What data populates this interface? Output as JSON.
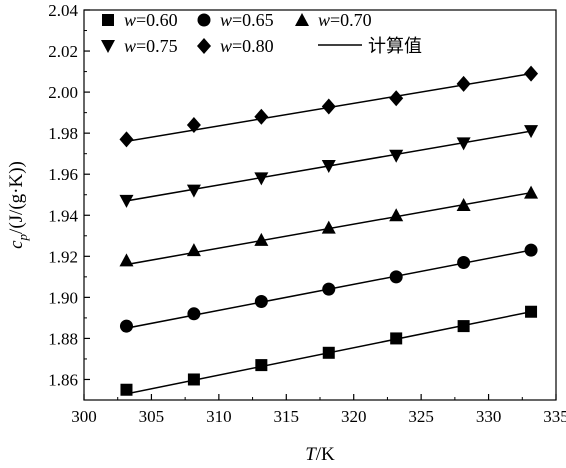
{
  "chart_data": {
    "type": "line",
    "xlabel_italic": "T",
    "xlabel_unit": "/K",
    "ylabel_italic": "c",
    "ylabel_sub": "p",
    "ylabel_unit": "/(J/(g·K))",
    "xlim": [
      300,
      335
    ],
    "ylim": [
      1.85,
      2.04
    ],
    "x_ticks": [
      "300",
      "305",
      "310",
      "315",
      "320",
      "325",
      "330",
      "335"
    ],
    "y_ticks": [
      "1.86",
      "1.88",
      "1.90",
      "1.92",
      "1.94",
      "1.96",
      "1.98",
      "2.00",
      "2.02",
      "2.04"
    ],
    "x": [
      303.15,
      308.15,
      313.15,
      318.15,
      323.15,
      328.15,
      333.15
    ],
    "series": [
      {
        "name_var": "w",
        "name_val": "=0.60",
        "marker": "square",
        "values": [
          1.855,
          1.86,
          1.867,
          1.873,
          1.88,
          1.886,
          1.893
        ],
        "fit": [
          1.853,
          1.893
        ]
      },
      {
        "name_var": "w",
        "name_val": "=0.65",
        "marker": "circle",
        "values": [
          1.886,
          1.892,
          1.898,
          1.904,
          1.91,
          1.917,
          1.923
        ],
        "fit": [
          1.885,
          1.923
        ]
      },
      {
        "name_var": "w",
        "name_val": "=0.70",
        "marker": "triangle-up",
        "values": [
          1.918,
          1.923,
          1.928,
          1.934,
          1.94,
          1.945,
          1.951
        ],
        "fit": [
          1.916,
          1.951
        ]
      },
      {
        "name_var": "w",
        "name_val": "=0.75",
        "marker": "triangle-down",
        "values": [
          1.947,
          1.952,
          1.958,
          1.964,
          1.969,
          1.975,
          1.981
        ],
        "fit": [
          1.947,
          1.981
        ]
      },
      {
        "name_var": "w",
        "name_val": "=0.80",
        "marker": "diamond",
        "values": [
          1.977,
          1.984,
          1.988,
          1.993,
          1.997,
          2.004,
          2.009
        ],
        "fit": [
          1.976,
          2.009
        ]
      }
    ],
    "legend": {
      "placement": "top-left",
      "fit_label": "计算值"
    },
    "color": "#000000",
    "grid": false
  }
}
